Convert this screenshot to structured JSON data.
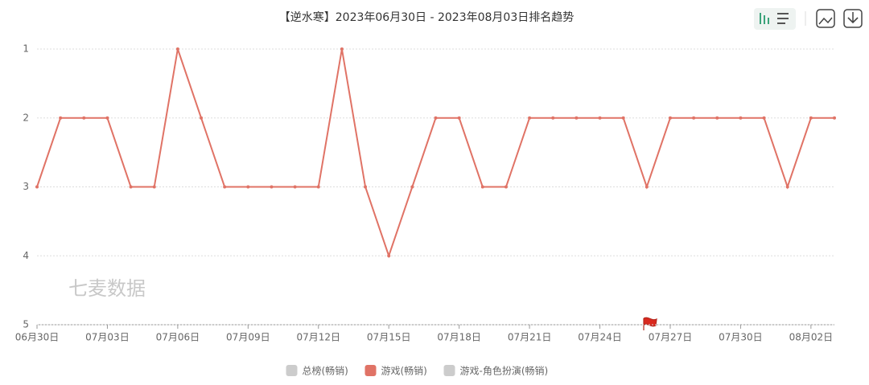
{
  "chart_data": {
    "type": "line",
    "title": "【逆水寒】2023年06月30日 - 2023年08月03日排名趋势",
    "watermark": "七麦数据",
    "categories": [
      "06月30日",
      null,
      null,
      "07月03日",
      null,
      null,
      "07月06日",
      null,
      null,
      "07月09日",
      null,
      null,
      "07月12日",
      null,
      null,
      "07月15日",
      null,
      null,
      "07月18日",
      null,
      null,
      "07月21日",
      null,
      null,
      "07月24日",
      null,
      null,
      "07月27日",
      null,
      null,
      "07月30日",
      null,
      null,
      "08月02日",
      null
    ],
    "series": [
      {
        "name": "总榜(畅销)",
        "color": "#cccccc",
        "visible": false
      },
      {
        "name": "游戏(畅销)",
        "color": "#e07366",
        "visible": true,
        "values": [
          3,
          2,
          2,
          2,
          3,
          3,
          1,
          2,
          3,
          3,
          3,
          3,
          3,
          1,
          3,
          4,
          3,
          2,
          2,
          3,
          3,
          2,
          2,
          2,
          2,
          2,
          3,
          2,
          2,
          2,
          2,
          2,
          3,
          2,
          2
        ]
      },
      {
        "name": "游戏-角色扮演(畅销)",
        "color": "#cccccc",
        "visible": false
      }
    ],
    "ylim": [
      5,
      1
    ],
    "yticks": [
      1,
      2,
      3,
      4,
      5
    ],
    "grid": true
  }
}
